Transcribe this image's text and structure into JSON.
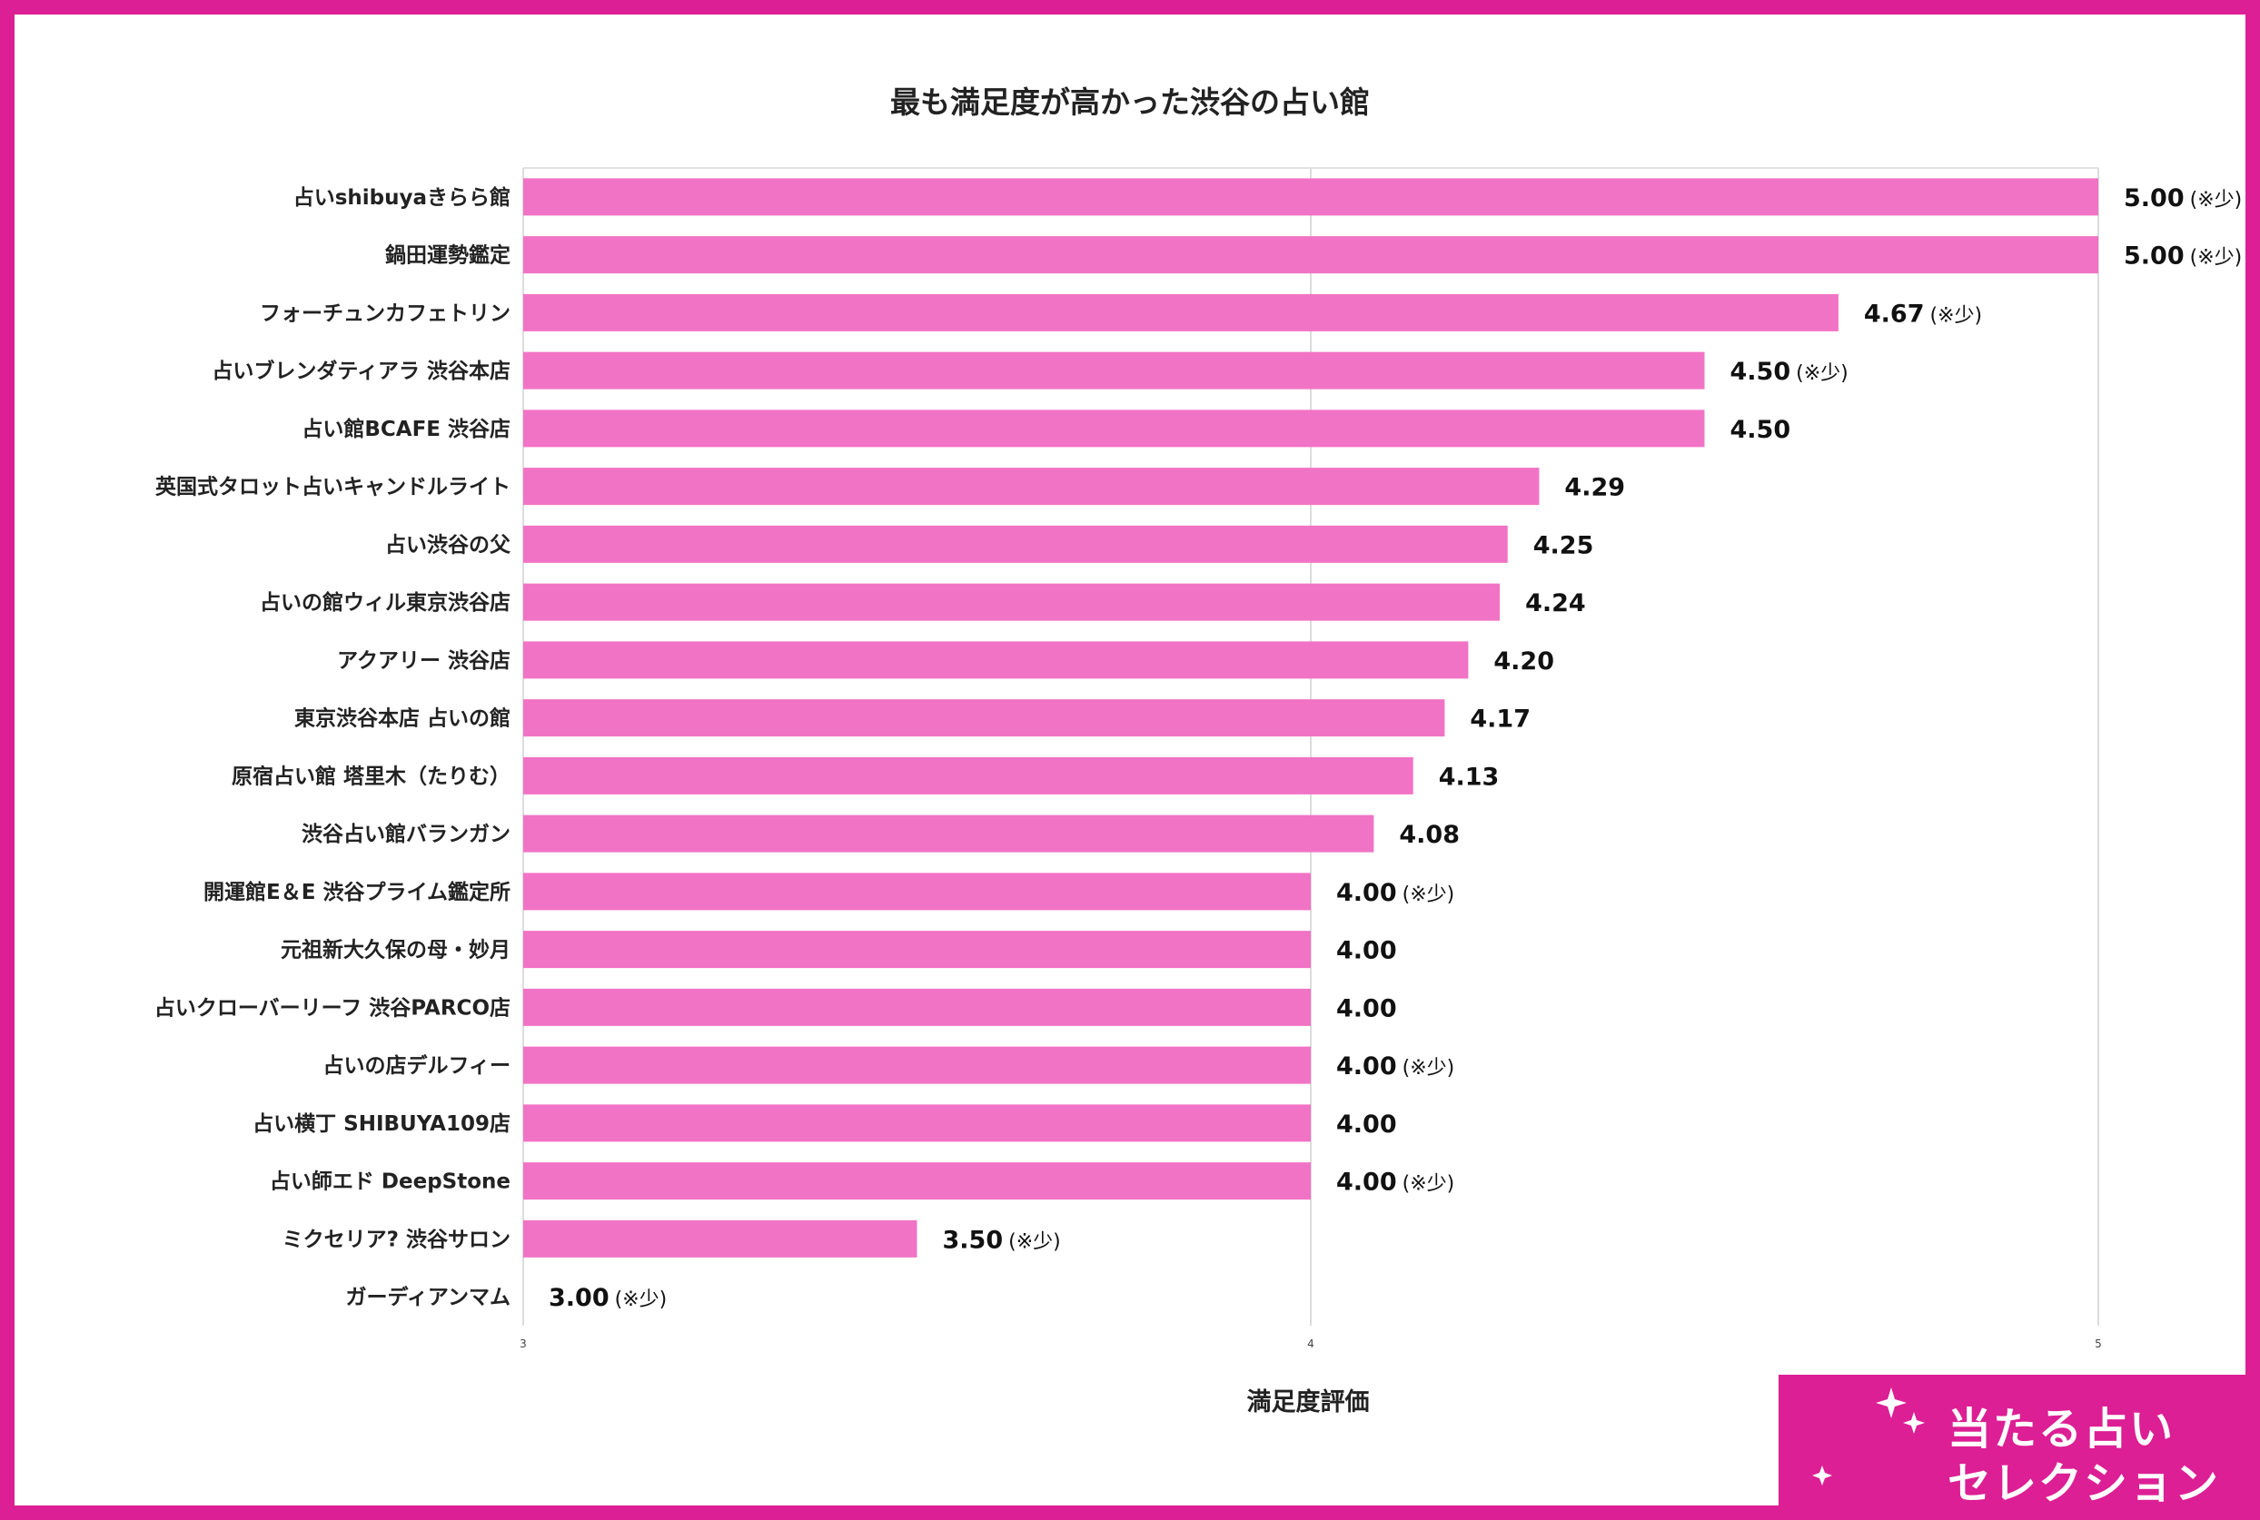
{
  "chart_data": {
    "type": "bar",
    "orientation": "horizontal",
    "title": "最も満足度が高かった渋谷の占い館",
    "xlabel": "満足度評価",
    "ylabel": "",
    "xlim": [
      3,
      5
    ],
    "xticks": [
      "3",
      "4",
      "5"
    ],
    "grid": true,
    "bar_color": "#f173c5",
    "categories": [
      "占いshibuyaきらら館",
      "鍋田運勢鑑定",
      "フォーチュンカフェトリン",
      "占いブレンダティアラ 渋谷本店",
      "占い館BCAFE 渋谷店",
      "英国式タロット占いキャンドルライト",
      "占い渋谷の父",
      "占いの館ウィル東京渋谷店",
      "アクアリー 渋谷店",
      "東京渋谷本店 占いの館",
      "原宿占い館 塔里木（たりむ）",
      "渋谷占い館バランガン",
      "開運館E＆E 渋谷プライム鑑定所",
      "元祖新大久保の母・妙月",
      "占いクローバーリーフ 渋谷PARCO店",
      "占いの店デルフィー",
      "占い横丁 SHIBUYA109店",
      "占い師エド DeepStone",
      "ミクセリア? 渋谷サロン",
      "ガーディアンマム"
    ],
    "values": [
      5.0,
      5.0,
      4.67,
      4.5,
      4.5,
      4.29,
      4.25,
      4.24,
      4.2,
      4.17,
      4.13,
      4.08,
      4.0,
      4.0,
      4.0,
      4.0,
      4.0,
      4.0,
      3.5,
      3.0
    ],
    "value_labels": [
      "5.00",
      "5.00",
      "4.67",
      "4.50",
      "4.50",
      "4.29",
      "4.25",
      "4.24",
      "4.20",
      "4.17",
      "4.13",
      "4.08",
      "4.00",
      "4.00",
      "4.00",
      "4.00",
      "4.00",
      "4.00",
      "3.50",
      "3.00"
    ],
    "notes": [
      "(※少)",
      "(※少)",
      "(※少)",
      "(※少)",
      "",
      "",
      "",
      "",
      "",
      "",
      "",
      "",
      "(※少)",
      "",
      "",
      "(※少)",
      "",
      "(※少)",
      "(※少)",
      "(※少)"
    ]
  },
  "logo": {
    "line1": "当たる占い",
    "line2": "セレクション",
    "bg_color": "#dc1f94",
    "icon": "crescent-moon-sparkle-icon"
  }
}
